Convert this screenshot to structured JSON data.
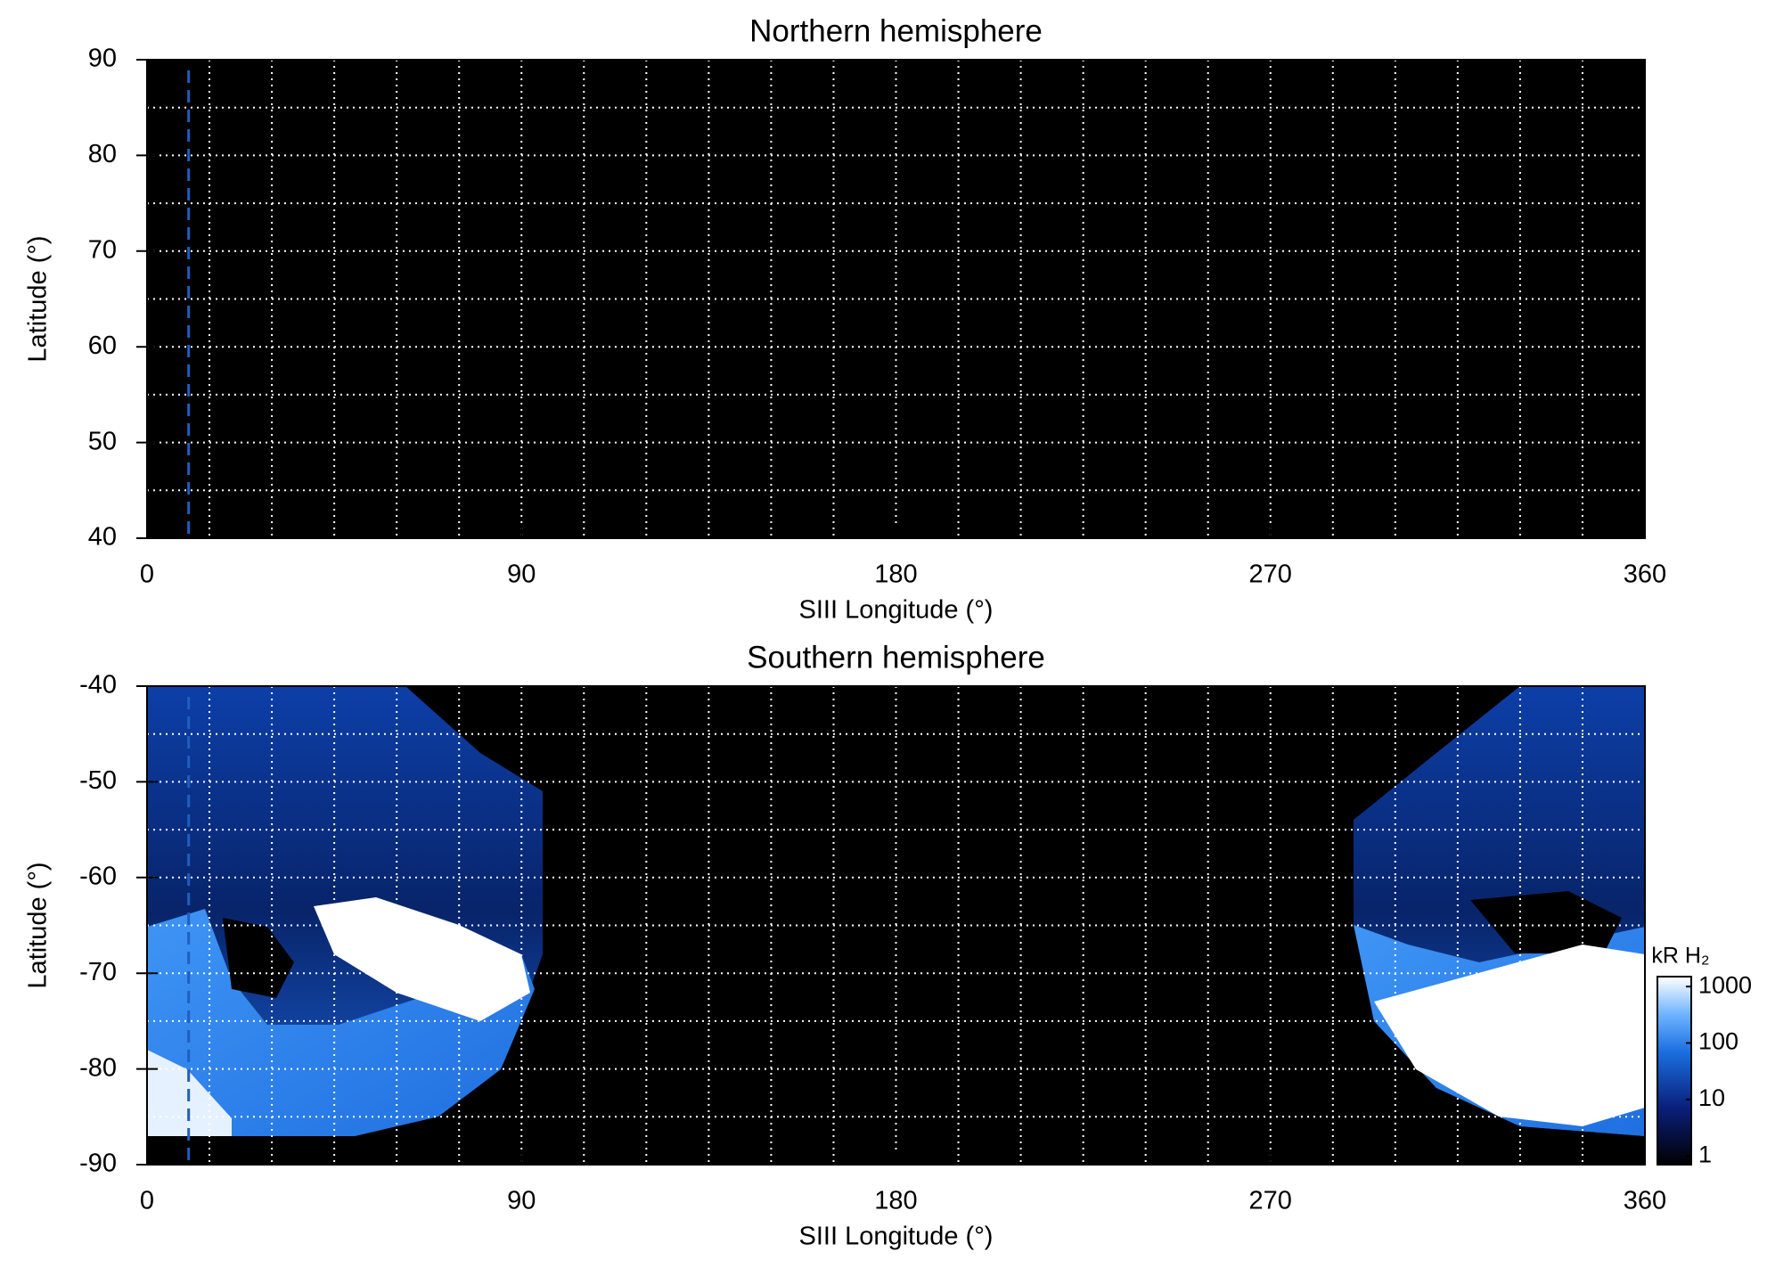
{
  "chart_data": [
    {
      "type": "map",
      "title": "Northern hemisphere",
      "xlabel": "SIII Longitude (°)",
      "ylabel": "Latitude (°)",
      "xlim": [
        0,
        360
      ],
      "xticks": [
        0,
        90,
        180,
        270,
        360
      ],
      "ylim": [
        40,
        90
      ],
      "yticks": [
        40,
        50,
        60,
        70,
        80,
        90
      ],
      "grid": true,
      "xgrid": [
        15,
        30,
        45,
        60,
        75,
        90,
        105,
        120,
        135,
        150,
        165,
        180,
        195,
        210,
        225,
        240,
        255,
        270,
        285,
        300,
        315,
        330,
        345
      ],
      "ygrid": [
        45,
        50,
        55,
        60,
        65,
        70,
        75,
        80,
        85
      ],
      "vline": 10,
      "vline_color": "#1f5fbf"
    },
    {
      "type": "map",
      "title": "Southern hemisphere",
      "xlabel": "SIII Longitude (°)",
      "ylabel": "Latitude (°)",
      "xlim": [
        0,
        360
      ],
      "xticks": [
        0,
        90,
        180,
        270,
        360
      ],
      "ylim": [
        -90,
        -40
      ],
      "yticks": [
        -90,
        -80,
        -70,
        -60,
        -50,
        -40
      ],
      "grid": true,
      "xgrid": [
        15,
        30,
        45,
        60,
        75,
        90,
        105,
        120,
        135,
        150,
        165,
        180,
        195,
        210,
        225,
        240,
        255,
        270,
        285,
        300,
        315,
        330,
        345
      ],
      "ygrid": [
        -85,
        -80,
        -75,
        -70,
        -65,
        -60,
        -55,
        -50,
        -45
      ],
      "vline": 10,
      "vline_color": "#1f5fbf",
      "colorbar": {
        "label": "kR H₂",
        "scale": "log",
        "lim": [
          0.7,
          1500
        ],
        "ticks": [
          1,
          10,
          100,
          1000
        ]
      }
    }
  ]
}
